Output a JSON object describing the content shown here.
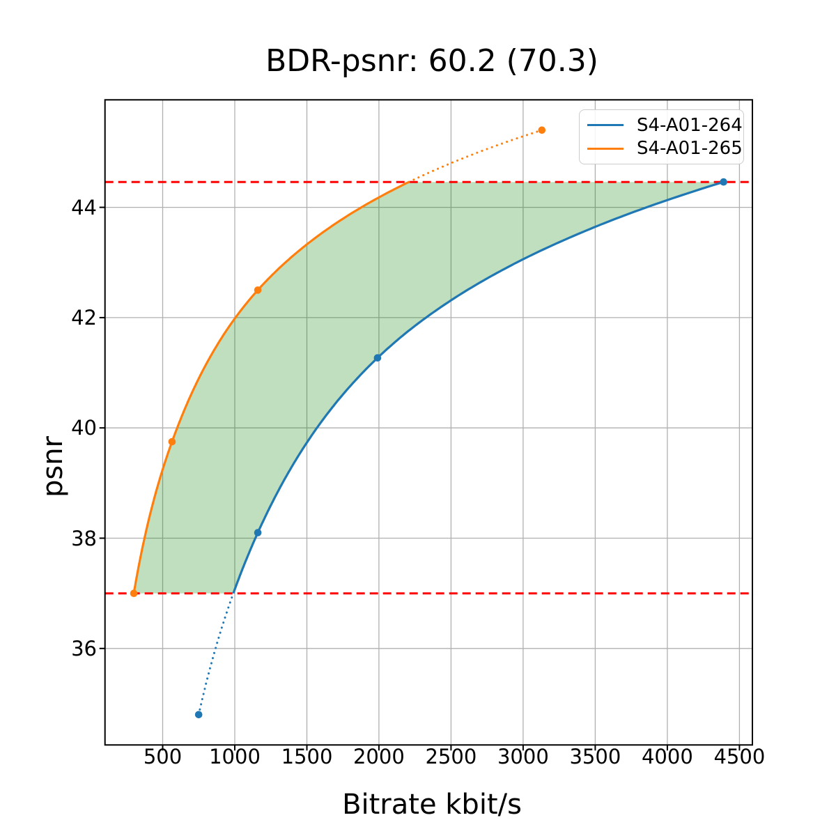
{
  "chart_data": {
    "type": "line",
    "title": "BDR-psnr: 60.2 (70.3)",
    "xlabel": "Bitrate kbit/s",
    "ylabel": "psnr",
    "xlim": [
      100,
      4590
    ],
    "ylim": [
      34.25,
      45.95
    ],
    "xticks": [
      500,
      1000,
      1500,
      2000,
      2500,
      3000,
      3500,
      4000,
      4500
    ],
    "yticks": [
      36,
      38,
      40,
      42,
      44
    ],
    "grid": true,
    "grid_color": "#b0b0b0",
    "legend_position": "upper right",
    "series": [
      {
        "name": "S4-A01-264",
        "color": "#1f77b4",
        "points_bitrate_psnr": [
          [
            750,
            34.8
          ],
          [
            1160,
            38.1
          ],
          [
            1990,
            41.27
          ],
          [
            4390,
            44.46
          ]
        ]
      },
      {
        "name": "S4-A01-265",
        "color": "#ff7f0e",
        "points_bitrate_psnr": [
          [
            300,
            37.0
          ],
          [
            565,
            39.75
          ],
          [
            1160,
            42.5
          ],
          [
            3130,
            45.4
          ]
        ]
      }
    ],
    "overlap_psnr_range": [
      37.0,
      44.46
    ],
    "ref_line_color": "#ff0000",
    "ref_line_style": "dashed",
    "fill_color": "#008000",
    "fill_opacity": 0.25,
    "curve_style_note": "pchip interpolation on log10(bitrate); solid inside overlap psnr range, dotted outside"
  }
}
